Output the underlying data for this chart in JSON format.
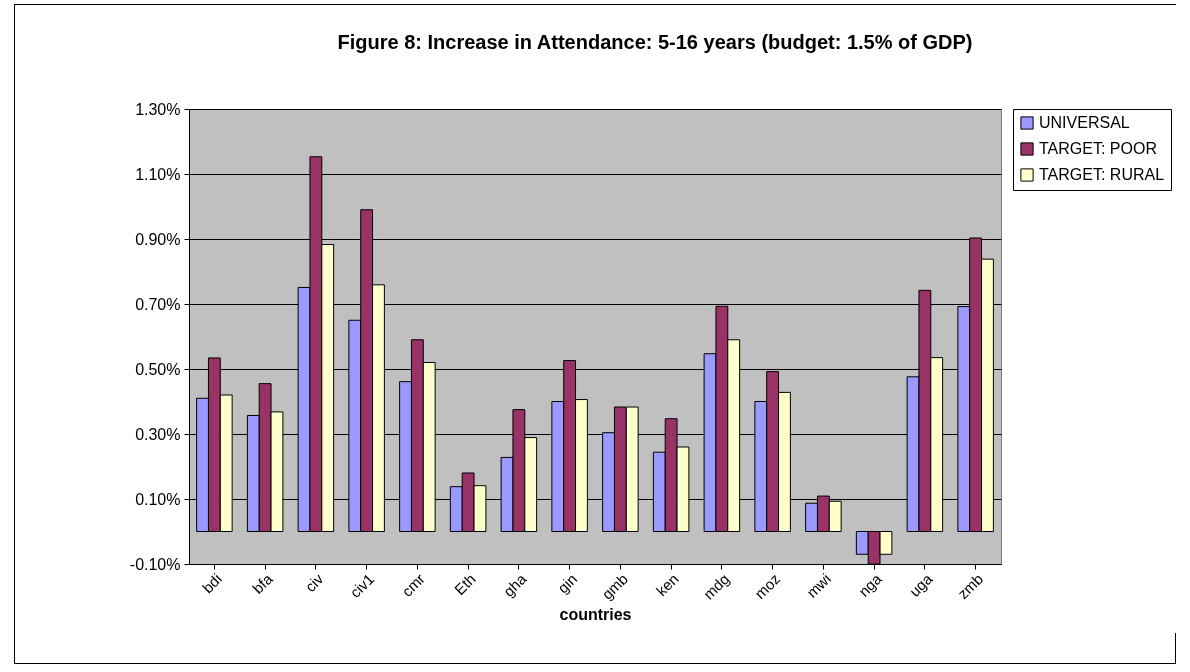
{
  "chart_data": {
    "type": "bar",
    "title": "Figure 8: Increase in Attendance: 5-16 years (budget: 1.5% of GDP)",
    "xlabel": "countries",
    "categories": [
      "bdi",
      "bfa",
      "civ",
      "civ1",
      "cmr",
      "Eth",
      "gha",
      "gin",
      "gmb",
      "ken",
      "mdg",
      "moz",
      "mwi",
      "nga",
      "uga",
      "zmb"
    ],
    "series": [
      {
        "name": "UNIVERSAL",
        "color": "#9999ff",
        "values": [
          0.41,
          0.357,
          0.751,
          0.65,
          0.461,
          0.138,
          0.228,
          0.4,
          0.304,
          0.244,
          0.547,
          0.4,
          0.087,
          -0.07,
          0.476,
          0.692
        ]
      },
      {
        "name": "TARGET: POOR",
        "color": "#993366",
        "values": [
          0.534,
          0.455,
          1.153,
          0.99,
          0.59,
          0.18,
          0.375,
          0.526,
          0.383,
          0.347,
          0.693,
          0.492,
          0.109,
          -0.1,
          0.742,
          0.903
        ]
      },
      {
        "name": "TARGET: RURAL",
        "color": "#ffffcc",
        "values": [
          0.42,
          0.368,
          0.883,
          0.759,
          0.52,
          0.141,
          0.289,
          0.406,
          0.383,
          0.26,
          0.59,
          0.428,
          0.093,
          -0.07,
          0.535,
          0.838
        ]
      }
    ],
    "ylim": [
      -0.1,
      1.3
    ],
    "yticks": [
      {
        "value": -0.1,
        "label": "-0.10%"
      },
      {
        "value": 0.1,
        "label": "0.10%"
      },
      {
        "value": 0.3,
        "label": "0.30%"
      },
      {
        "value": 0.5,
        "label": "0.50%"
      },
      {
        "value": 0.7,
        "label": "0.70%"
      },
      {
        "value": 0.9,
        "label": "0.90%"
      },
      {
        "value": 1.1,
        "label": "1.10%"
      },
      {
        "value": 1.3,
        "label": "1.30%"
      }
    ],
    "grid": "y",
    "legend": "right"
  }
}
